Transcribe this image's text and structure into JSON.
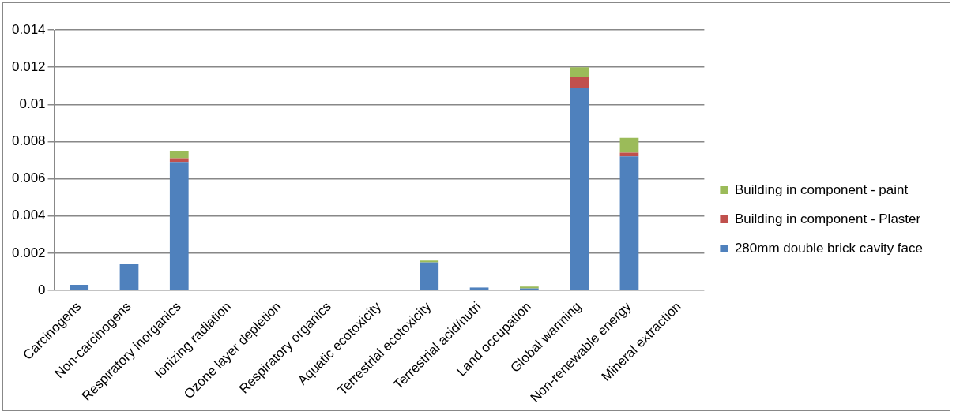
{
  "chart_data": {
    "type": "bar",
    "stacked": true,
    "categories": [
      "Carcinogens",
      "Non-carcinogens",
      "Respiratory inorganics",
      "Ionizing radiation",
      "Ozone layer depletion",
      "Respiratory organics",
      "Aquatic ecotoxicity",
      "Terrestrial ecotoxicity",
      "Terrestrial acid/nutri",
      "Land occupation",
      "Global warming",
      "Non-renewable energy",
      "Mineral extraction"
    ],
    "series": [
      {
        "name": "280mm double brick cavity face",
        "color": "#4f81bd",
        "values": [
          0.0003,
          0.0014,
          0.0069,
          0,
          0,
          0,
          0,
          0.0015,
          0.00015,
          0.0001,
          0.0109,
          0.0072,
          0
        ]
      },
      {
        "name": "Building in component - Plaster",
        "color": "#c0504d",
        "values": [
          0,
          0,
          0.0002,
          0,
          0,
          0,
          0,
          0,
          0,
          0,
          0.0006,
          0.0002,
          0
        ]
      },
      {
        "name": "Building in component - paint",
        "color": "#9bbb59",
        "values": [
          0,
          0,
          0.0004,
          0,
          0,
          0,
          0,
          0.0001,
          0,
          0.0001,
          0.0005,
          0.0008,
          0
        ]
      }
    ],
    "ylim": [
      0,
      0.014
    ],
    "yticks": [
      0,
      0.002,
      0.004,
      0.006,
      0.008,
      0.01,
      0.012,
      0.014
    ],
    "grid": "y",
    "legend": "right"
  }
}
